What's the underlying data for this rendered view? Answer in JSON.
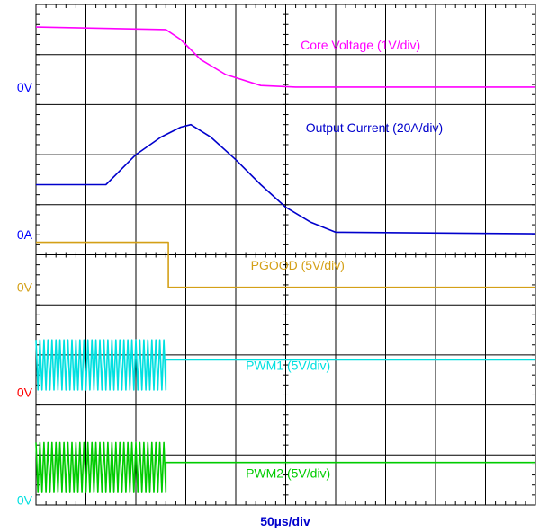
{
  "chart_data": {
    "type": "line",
    "title": "",
    "xlabel": "50µs/div",
    "ylabel": "",
    "x_unit": "div",
    "xlim": [
      0,
      10
    ],
    "ylim": [
      0,
      10
    ],
    "grid": true,
    "grid_divisions": {
      "x": 10,
      "y": 10
    },
    "baseline_labels": [
      {
        "text": "0V",
        "level": 8.35,
        "color": "#0000ff"
      },
      {
        "text": "0A",
        "level": 5.4,
        "color": "#0000ff"
      },
      {
        "text": "0V",
        "level": 4.35,
        "color": "#d4a017"
      },
      {
        "text": "0V",
        "level": 2.25,
        "color": "#ff0000"
      },
      {
        "text": "0V",
        "level": 0.1,
        "color": "#00e0e0"
      }
    ],
    "series": [
      {
        "name": "Core Voltage (1V/div)",
        "color": "#ff00ff",
        "label_at": [
          5.3,
          9.1
        ],
        "points": [
          [
            0,
            9.55
          ],
          [
            2.6,
            9.5
          ],
          [
            2.9,
            9.3
          ],
          [
            3.3,
            8.9
          ],
          [
            3.8,
            8.6
          ],
          [
            4.5,
            8.38
          ],
          [
            5.2,
            8.35
          ],
          [
            10,
            8.35
          ]
        ]
      },
      {
        "name": "Output Current (20A/div)",
        "color": "#0000cc",
        "label_at": [
          5.4,
          7.45
        ],
        "points": [
          [
            0,
            6.4
          ],
          [
            1.4,
            6.4
          ],
          [
            1.6,
            6.6
          ],
          [
            2.0,
            7.0
          ],
          [
            2.5,
            7.35
          ],
          [
            2.9,
            7.55
          ],
          [
            3.1,
            7.6
          ],
          [
            3.5,
            7.35
          ],
          [
            4.0,
            6.9
          ],
          [
            4.5,
            6.4
          ],
          [
            5.0,
            5.95
          ],
          [
            5.5,
            5.65
          ],
          [
            6.0,
            5.45
          ],
          [
            10,
            5.42
          ]
        ]
      },
      {
        "name": "PGOOD (5V/div)",
        "color": "#d4a017",
        "label_at": [
          4.3,
          4.7
        ],
        "points": [
          [
            0,
            5.25
          ],
          [
            2.6,
            5.25
          ],
          [
            2.65,
            5.25
          ],
          [
            2.65,
            4.35
          ],
          [
            10,
            4.35
          ]
        ]
      },
      {
        "name": "PWM1 (5V/div)",
        "color": "#00e0e0",
        "label_at": [
          4.2,
          2.7
        ],
        "switching": {
          "x_start": 0,
          "x_end": 2.6,
          "low": 2.3,
          "high": 3.3
        },
        "points": [
          [
            2.6,
            2.9
          ],
          [
            10,
            2.9
          ]
        ]
      },
      {
        "name": "PWM2 (5V/div)",
        "color": "#00cc00",
        "label_at": [
          4.2,
          0.55
        ],
        "switching": {
          "x_start": 0,
          "x_end": 2.6,
          "low": 0.25,
          "high": 1.25
        },
        "points": [
          [
            2.6,
            0.85
          ],
          [
            10,
            0.85
          ]
        ]
      }
    ]
  }
}
